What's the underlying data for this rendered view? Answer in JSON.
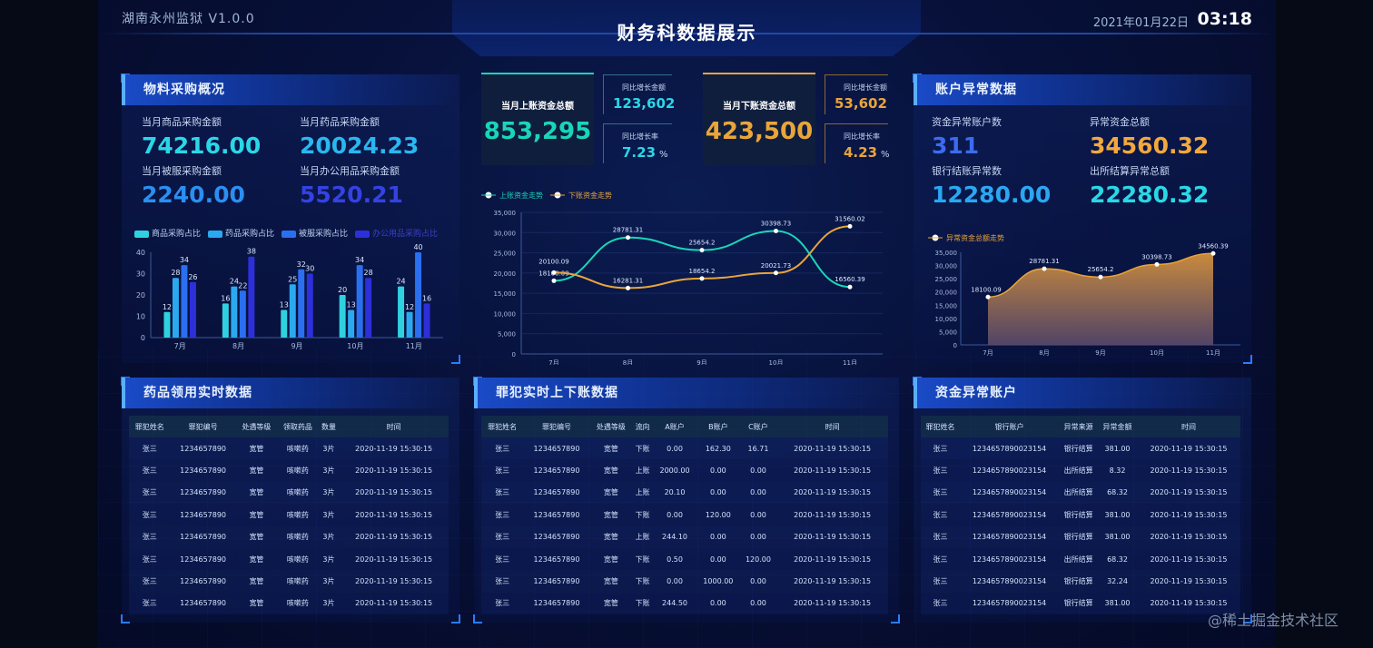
{
  "header": {
    "system": "湖南永州监狱 V1.0.0",
    "title": "财务科数据展示",
    "date": "2021年01月22日",
    "time": "03:18"
  },
  "materials": {
    "title": "物料采购概况",
    "stats": [
      {
        "label": "当月商品采购金额",
        "value": "74216.00",
        "color": "#2ad7e6"
      },
      {
        "label": "当月药品采购金额",
        "value": "20024.23",
        "color": "#2ab6ef"
      },
      {
        "label": "当月被服采购金额",
        "value": "2240.00",
        "color": "#2a8ff0"
      },
      {
        "label": "当月办公用品采购金额",
        "value": "5520.21",
        "color": "#3342e0"
      }
    ],
    "legend": [
      "商品采购占比",
      "药品采购占比",
      "被服采购占比",
      "办公用品采购占比"
    ]
  },
  "center": {
    "incoming_label": "当月上账资金总额",
    "incoming_value": "853,295",
    "incoming_growth_label": "同比增长金额",
    "incoming_growth": "123,602",
    "incoming_rate_label": "同比增长率",
    "incoming_rate": "7.23",
    "outgoing_label": "当月下账资金总额",
    "outgoing_value": "423,500",
    "outgoing_growth_label": "同比增长金额",
    "outgoing_growth": "53,602",
    "outgoing_rate_label": "同比增长率",
    "outgoing_rate": "4.23",
    "percent": "%"
  },
  "accounts": {
    "title": "账户异常数据",
    "stats": [
      {
        "label": "资金异常账户数",
        "value": "311",
        "color": "#3d6bf0"
      },
      {
        "label": "异常资金总额",
        "value": "34560.32",
        "color": "#f2a83c"
      },
      {
        "label": "银行结账异常数",
        "value": "12280.00",
        "color": "#2aa7f0"
      },
      {
        "label": "出所结算异常总额",
        "value": "22280.32",
        "color": "#2ad7e6"
      }
    ]
  },
  "colors": {
    "teal": "#1ad6b8",
    "orange": "#e9a53a",
    "bar1": "#2fd0e0",
    "bar2": "#2aa8f0",
    "bar3": "#2a6ff0",
    "bar4": "#2d2fd8"
  },
  "chart_data": [
    {
      "type": "bar",
      "categories": [
        "7月",
        "8月",
        "9月",
        "10月",
        "11月"
      ],
      "series": [
        {
          "name": "商品采购占比",
          "values": [
            12,
            16,
            13,
            20,
            24
          ]
        },
        {
          "name": "药品采购占比",
          "values": [
            28,
            24,
            25,
            13,
            12
          ]
        },
        {
          "name": "被服采购占比",
          "values": [
            34,
            22,
            32,
            34,
            40
          ]
        },
        {
          "name": "办公用品采购占比",
          "values": [
            26,
            38,
            30,
            28,
            16
          ]
        }
      ],
      "ylim": [
        0,
        40
      ],
      "yticks": [
        0,
        10,
        20,
        30,
        40
      ]
    },
    {
      "type": "line",
      "categories": [
        "7月",
        "8月",
        "9月",
        "10月",
        "11月"
      ],
      "series": [
        {
          "name": "上账资金走势",
          "values": [
            18100.09,
            28781.31,
            25654.2,
            30398.73,
            16560.39
          ]
        },
        {
          "name": "下账资金走势",
          "values": [
            20100.09,
            16281.31,
            18654.2,
            20021.73,
            31560.02
          ]
        }
      ],
      "ylim": [
        0,
        35000
      ],
      "yticks": [
        "0",
        "5,000",
        "10,000",
        "15,000",
        "20,000",
        "25,000",
        "30,000",
        "35,000"
      ]
    },
    {
      "type": "area",
      "categories": [
        "7月",
        "8月",
        "9月",
        "10月",
        "11月"
      ],
      "series": [
        {
          "name": "异常资金总额走势",
          "values": [
            18100.09,
            28781.31,
            25654.2,
            30398.73,
            34560.39
          ]
        }
      ],
      "ylim": [
        0,
        35000
      ],
      "yticks": [
        "0",
        "5,000",
        "10,000",
        "15,000",
        "20,000",
        "25,000",
        "30,000",
        "35,000"
      ]
    }
  ],
  "tables": {
    "medicine": {
      "title": "药品领用实时数据",
      "columns": [
        "罪犯姓名",
        "罪犯编号",
        "处遇等级",
        "领取药品",
        "数量",
        "时间"
      ],
      "rows": [
        [
          "张三",
          "1234657890",
          "宽管",
          "咳嗽药",
          "3片",
          "2020-11-19 15:30:15"
        ],
        [
          "张三",
          "1234657890",
          "宽管",
          "咳嗽药",
          "3片",
          "2020-11-19 15:30:15"
        ],
        [
          "张三",
          "1234657890",
          "宽管",
          "咳嗽药",
          "3片",
          "2020-11-19 15:30:15"
        ],
        [
          "张三",
          "1234657890",
          "宽管",
          "咳嗽药",
          "3片",
          "2020-11-19 15:30:15"
        ],
        [
          "张三",
          "1234657890",
          "宽管",
          "咳嗽药",
          "3片",
          "2020-11-19 15:30:15"
        ],
        [
          "张三",
          "1234657890",
          "宽管",
          "咳嗽药",
          "3片",
          "2020-11-19 15:30:15"
        ],
        [
          "张三",
          "1234657890",
          "宽管",
          "咳嗽药",
          "3片",
          "2020-11-19 15:30:15"
        ],
        [
          "张三",
          "1234657890",
          "宽管",
          "咳嗽药",
          "3片",
          "2020-11-19 15:30:15"
        ]
      ]
    },
    "criminal": {
      "title": "罪犯实时上下账数据",
      "columns": [
        "罪犯姓名",
        "罪犯编号",
        "处遇等级",
        "流向",
        "A账户",
        "B账户",
        "C账户",
        "时间"
      ],
      "rows": [
        [
          "张三",
          "1234657890",
          "宽管",
          "下账",
          "0.00",
          "162.30",
          "16.71",
          "2020-11-19 15:30:15"
        ],
        [
          "张三",
          "1234657890",
          "宽管",
          "上账",
          "2000.00",
          "0.00",
          "0.00",
          "2020-11-19 15:30:15"
        ],
        [
          "张三",
          "1234657890",
          "宽管",
          "上账",
          "20.10",
          "0.00",
          "0.00",
          "2020-11-19 15:30:15"
        ],
        [
          "张三",
          "1234657890",
          "宽管",
          "下账",
          "0.00",
          "120.00",
          "0.00",
          "2020-11-19 15:30:15"
        ],
        [
          "张三",
          "1234657890",
          "宽管",
          "上账",
          "244.10",
          "0.00",
          "0.00",
          "2020-11-19 15:30:15"
        ],
        [
          "张三",
          "1234657890",
          "宽管",
          "下账",
          "0.50",
          "0.00",
          "120.00",
          "2020-11-19 15:30:15"
        ],
        [
          "张三",
          "1234657890",
          "宽管",
          "下账",
          "0.00",
          "1000.00",
          "0.00",
          "2020-11-19 15:30:15"
        ],
        [
          "张三",
          "1234657890",
          "宽管",
          "下账",
          "244.50",
          "0.00",
          "0.00",
          "2020-11-19 15:30:15"
        ]
      ]
    },
    "funds": {
      "title": "资金异常账户",
      "columns": [
        "罪犯姓名",
        "银行账户",
        "异常来源",
        "异常金额",
        "时间"
      ],
      "rows": [
        [
          "张三",
          "1234657890023154",
          "银行结算",
          "381.00",
          "2020-11-19 15:30:15"
        ],
        [
          "张三",
          "1234657890023154",
          "出所结算",
          "8.32",
          "2020-11-19 15:30:15"
        ],
        [
          "张三",
          "1234657890023154",
          "出所结算",
          "68.32",
          "2020-11-19 15:30:15"
        ],
        [
          "张三",
          "1234657890023154",
          "银行结算",
          "381.00",
          "2020-11-19 15:30:15"
        ],
        [
          "张三",
          "1234657890023154",
          "银行结算",
          "381.00",
          "2020-11-19 15:30:15"
        ],
        [
          "张三",
          "1234657890023154",
          "出所结算",
          "68.32",
          "2020-11-19 15:30:15"
        ],
        [
          "张三",
          "1234657890023154",
          "银行结算",
          "32.24",
          "2020-11-19 15:30:15"
        ],
        [
          "张三",
          "1234657890023154",
          "银行结算",
          "381.00",
          "2020-11-19 15:30:15"
        ]
      ]
    }
  },
  "watermark": "@稀土掘金技术社区"
}
